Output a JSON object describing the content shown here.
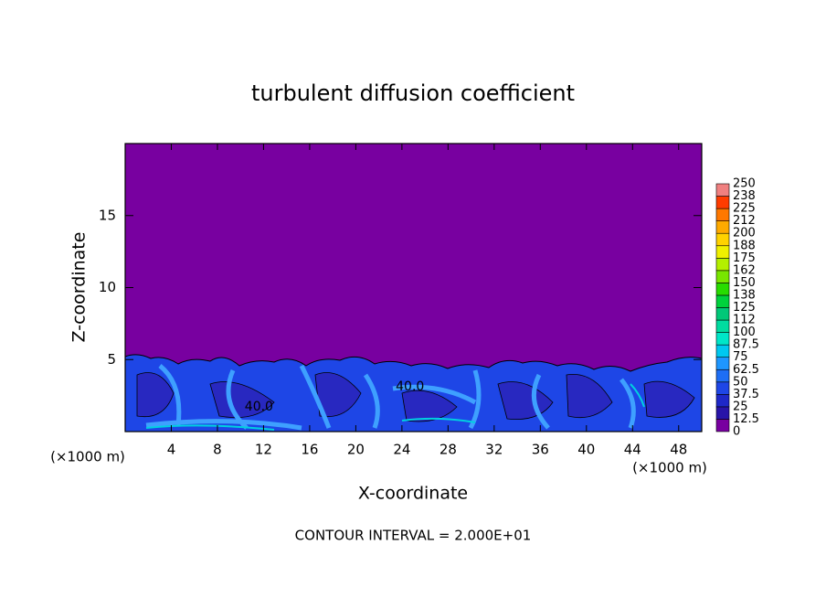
{
  "chart_data": {
    "type": "contour",
    "title": "turbulent diffusion coefficient",
    "x_label": "X-coordinate",
    "y_label": "Z-coordinate",
    "x_unit": "(×1000 m)",
    "xlim": [
      0,
      50
    ],
    "xticks": [
      4,
      8,
      12,
      16,
      20,
      24,
      28,
      32,
      36,
      40,
      44,
      48
    ],
    "ylim": [
      0,
      20
    ],
    "yticks": [
      5,
      10,
      15
    ],
    "colorbar_levels": [
      0,
      12.5,
      25,
      37.5,
      50,
      62.5,
      75,
      87.5,
      100,
      112,
      125,
      138,
      150,
      162,
      175,
      188,
      200,
      212,
      225,
      238,
      250
    ],
    "colorbar_colors": [
      "#7800a0",
      "#2814a8",
      "#1e28c8",
      "#1e46e6",
      "#1e6ef5",
      "#1e96ff",
      "#00c8f0",
      "#00e6c8",
      "#00dca0",
      "#00c878",
      "#00d23c",
      "#28dc00",
      "#78e600",
      "#b4f000",
      "#f0f000",
      "#ffd200",
      "#ffaa00",
      "#ff7800",
      "#ff3c00",
      "#f08080"
    ],
    "contour_labels": [
      {
        "text": "40.0",
        "x": 24.7,
        "z": 3.1
      },
      {
        "text": "40.0",
        "x": 11.6,
        "z": 1.7
      }
    ],
    "footer": "CONTOUR INTERVAL = 2.000E+01"
  }
}
